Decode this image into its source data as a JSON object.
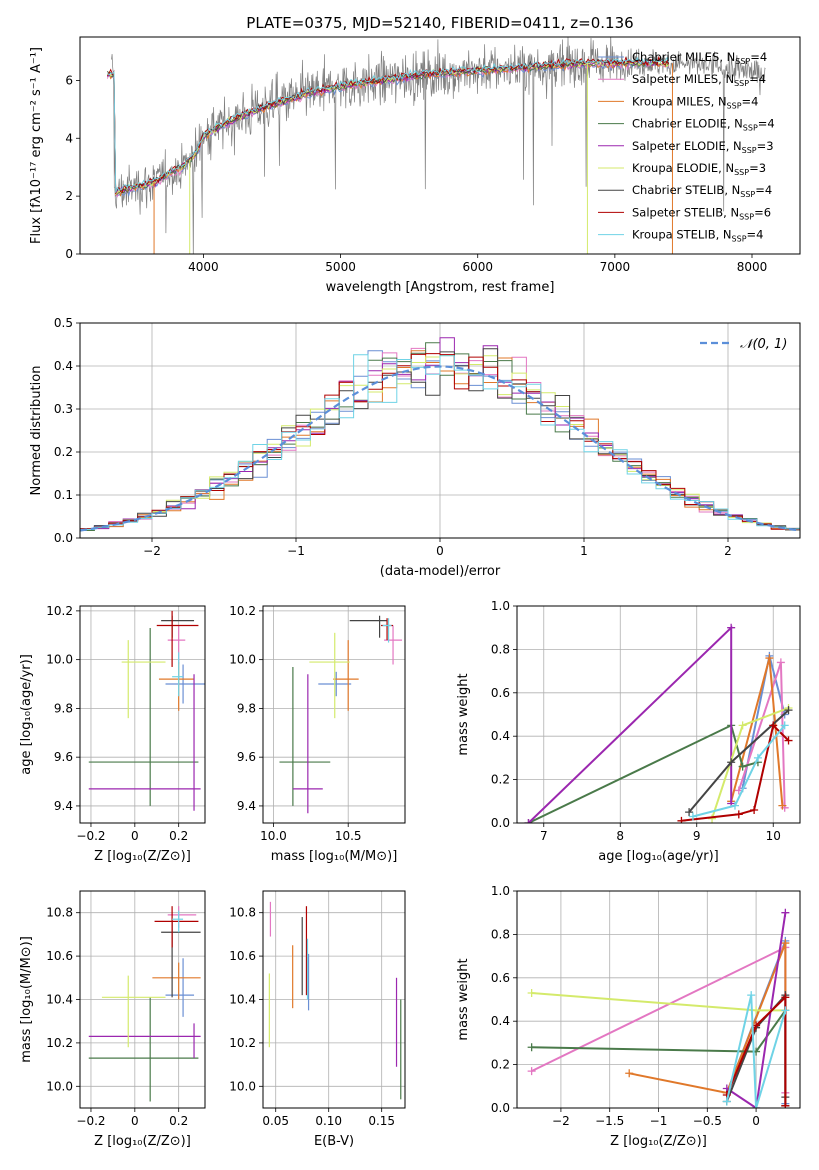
{
  "figure": {
    "title": "PLATE=0375, MJD=52140, FIBERID=0411, z=0.136"
  },
  "colors": {
    "chabrier_miles": "#6a8fd4",
    "salpeter_miles": "#e377c2",
    "kroupa_miles": "#e0782a",
    "chabrier_elodie": "#4a7a4a",
    "salpeter_elodie": "#9b27af",
    "kroupa_elodie": "#d4ea6b",
    "chabrier_stelib": "#444444",
    "salpeter_stelib": "#b00000",
    "kroupa_stelib": "#6fd3e6",
    "observed": "#7f7f7f",
    "normal": "#5b8fd9"
  },
  "chart_data": [
    {
      "id": "spectrum",
      "type": "line",
      "xlabel": "wavelength [Angstrom, rest frame]",
      "ylabel": "Flux [fλ10⁻¹⁷ erg cm⁻² s⁻¹ A⁻¹]",
      "xlim": [
        3100,
        8350
      ],
      "ylim": [
        0,
        7.5
      ],
      "xticks": [
        4000,
        5000,
        6000,
        7000,
        8000
      ],
      "yticks": [
        0,
        2,
        4,
        6
      ],
      "legend_position": "right",
      "legend": [
        {
          "label": "Chabrier MILES, N",
          "sub": "SSP",
          "suffix": "=4",
          "color": "chabrier_miles"
        },
        {
          "label": "Salpeter MILES, N",
          "sub": "SSP",
          "suffix": "=4",
          "color": "salpeter_miles"
        },
        {
          "label": "Kroupa MILES, N",
          "sub": "SSP",
          "suffix": "=4",
          "color": "kroupa_miles"
        },
        {
          "label": "Chabrier ELODIE, N",
          "sub": "SSP",
          "suffix": "=4",
          "color": "chabrier_elodie"
        },
        {
          "label": "Salpeter ELODIE, N",
          "sub": "SSP",
          "suffix": "=3",
          "color": "salpeter_elodie"
        },
        {
          "label": "Kroupa ELODIE, N",
          "sub": "SSP",
          "suffix": "=3",
          "color": "kroupa_elodie"
        },
        {
          "label": "Chabrier STELIB, N",
          "sub": "SSP",
          "suffix": "=4",
          "color": "chabrier_stelib"
        },
        {
          "label": "Salpeter STELIB, N",
          "sub": "SSP",
          "suffix": "=6",
          "color": "salpeter_stelib"
        },
        {
          "label": "Kroupa STELIB, N",
          "sub": "SSP",
          "suffix": "=4",
          "color": "kroupa_stelib"
        }
      ],
      "continuum": [
        [
          3350,
          2.1
        ],
        [
          3500,
          2.3
        ],
        [
          3650,
          2.5
        ],
        [
          3750,
          2.8
        ],
        [
          3850,
          3.0
        ],
        [
          3950,
          3.5
        ],
        [
          4000,
          4.1
        ],
        [
          4200,
          4.6
        ],
        [
          4400,
          5.0
        ],
        [
          4600,
          5.3
        ],
        [
          4800,
          5.6
        ],
        [
          5000,
          5.8
        ],
        [
          5300,
          6.0
        ],
        [
          5600,
          6.2
        ],
        [
          5900,
          6.3
        ],
        [
          6200,
          6.4
        ],
        [
          6500,
          6.5
        ],
        [
          6800,
          6.6
        ],
        [
          7100,
          6.6
        ],
        [
          7400,
          6.6
        ],
        [
          7700,
          6.5
        ],
        [
          8000,
          6.3
        ],
        [
          8100,
          6.2
        ]
      ],
      "model_range": [
        3300,
        7400
      ]
    },
    {
      "id": "residuals",
      "type": "bar",
      "xlabel": "(data-model)/error",
      "ylabel": "Normed distribution",
      "xlim": [
        -2.5,
        2.5
      ],
      "ylim": [
        0,
        0.5
      ],
      "xticks": [
        -2,
        -1,
        0,
        1,
        2
      ],
      "yticks": [
        0.0,
        0.1,
        0.2,
        0.3,
        0.4,
        0.5
      ],
      "bin_width": 0.1,
      "legend_label": "𝒩(0, 1)",
      "legend_position": "top-right",
      "series": [
        "chabrier_miles",
        "salpeter_miles",
        "kroupa_miles",
        "chabrier_elodie",
        "salpeter_elodie",
        "kroupa_elodie",
        "chabrier_stelib",
        "salpeter_stelib",
        "kroupa_stelib"
      ]
    },
    {
      "id": "z_age",
      "type": "scatter",
      "xlabel": "Z [log₁₀(Z/Z⊙)]",
      "ylabel": "age  [log₁₀(age/yr)]",
      "xlim": [
        -0.25,
        0.32
      ],
      "ylim": [
        9.33,
        10.22
      ],
      "xticks": [
        -0.2,
        0.0,
        0.2
      ],
      "yticks": [
        9.4,
        9.6,
        9.8,
        10.0,
        10.2
      ],
      "points": [
        {
          "s": "chabrier_miles",
          "x": 0.22,
          "xe": [
            -0.08,
            0.1
          ],
          "y": 9.9,
          "ye": [
            -0.08,
            0.08
          ]
        },
        {
          "s": "salpeter_miles",
          "x": 0.2,
          "xe": [
            -0.05,
            0.03
          ],
          "y": 10.08,
          "ye": [
            -0.1,
            0.06
          ]
        },
        {
          "s": "kroupa_miles",
          "x": 0.2,
          "xe": [
            -0.09,
            0.07
          ],
          "y": 9.92,
          "ye": [
            -0.13,
            0.07
          ]
        },
        {
          "s": "chabrier_elodie",
          "x": 0.07,
          "xe": [
            -0.28,
            0.22
          ],
          "y": 9.58,
          "ye": [
            -0.18,
            0.55
          ]
        },
        {
          "s": "salpeter_elodie",
          "x": 0.27,
          "xe": [
            -0.48,
            0.03
          ],
          "y": 9.47,
          "ye": [
            -0.09,
            0.47
          ]
        },
        {
          "s": "kroupa_elodie",
          "x": -0.03,
          "xe": [
            -0.03,
            0.17
          ],
          "y": 9.99,
          "ye": [
            -0.23,
            0.09
          ]
        },
        {
          "s": "chabrier_stelib",
          "x": 0.17,
          "xe": [
            -0.05,
            0.1
          ],
          "y": 10.16,
          "ye": [
            -0.07,
            0.02
          ]
        },
        {
          "s": "salpeter_stelib",
          "x": 0.17,
          "xe": [
            -0.07,
            0.12
          ],
          "y": 10.14,
          "ye": [
            -0.17,
            0.06
          ]
        },
        {
          "s": "kroupa_stelib",
          "x": 0.2,
          "xe": [
            -0.03,
            0.02
          ],
          "y": 9.93,
          "ye": [
            -0.08,
            0.1
          ]
        }
      ]
    },
    {
      "id": "mass_age",
      "type": "scatter",
      "xlabel": "mass [log₁₀(M/M⊙)]",
      "ylabel": "",
      "xlim": [
        9.93,
        10.88
      ],
      "ylim": [
        9.33,
        10.22
      ],
      "xticks": [
        10.0,
        10.5
      ],
      "xticklabels": [
        "10.0",
        "10.5"
      ],
      "yticks": [
        9.4,
        9.6,
        9.8,
        10.0,
        10.2
      ],
      "points": [
        {
          "s": "chabrier_miles",
          "x": 10.42,
          "xe": [
            -0.12,
            0.1
          ],
          "y": 9.9,
          "ye": [
            -0.05,
            0.05
          ]
        },
        {
          "s": "salpeter_miles",
          "x": 10.8,
          "xe": [
            -0.06,
            0.06
          ],
          "y": 10.08,
          "ye": [
            -0.1,
            0.06
          ]
        },
        {
          "s": "kroupa_miles",
          "x": 10.5,
          "xe": [
            -0.1,
            0.07
          ],
          "y": 9.92,
          "ye": [
            -0.13,
            0.16
          ]
        },
        {
          "s": "chabrier_elodie",
          "x": 10.13,
          "xe": [
            -0.09,
            0.25
          ],
          "y": 9.58,
          "ye": [
            -0.18,
            0.39
          ]
        },
        {
          "s": "salpeter_elodie",
          "x": 10.23,
          "xe": [
            -0.1,
            0.1
          ],
          "y": 9.47,
          "ye": [
            -0.1,
            0.47
          ]
        },
        {
          "s": "kroupa_elodie",
          "x": 10.41,
          "xe": [
            -0.17,
            0.1
          ],
          "y": 9.99,
          "ye": [
            -0.23,
            0.12
          ]
        },
        {
          "s": "chabrier_stelib",
          "x": 10.71,
          "xe": [
            -0.2,
            0.05
          ],
          "y": 10.16,
          "ye": [
            -0.07,
            0.02
          ]
        },
        {
          "s": "salpeter_stelib",
          "x": 10.76,
          "xe": [
            -0.04,
            0.04
          ],
          "y": 10.14,
          "ye": [
            -0.06,
            0.03
          ]
        },
        {
          "s": "kroupa_stelib",
          "x": 10.77,
          "xe": [
            -0.04,
            0.02
          ],
          "y": 10.14,
          "ye": [
            -0.07,
            0.03
          ]
        }
      ]
    },
    {
      "id": "age_weight",
      "type": "line",
      "xlabel": "age  [log₁₀(age/yr)]",
      "ylabel": "mass weight",
      "xlim": [
        6.65,
        10.35
      ],
      "ylim": [
        0,
        1.0
      ],
      "xticks": [
        7,
        8,
        9,
        10
      ],
      "yticks": [
        0.0,
        0.2,
        0.4,
        0.6,
        0.8,
        1.0
      ],
      "series": [
        {
          "s": "chabrier_miles",
          "x": [
            9.6,
            9.95,
            10.15
          ],
          "y": [
            0.16,
            0.77,
            0.5
          ]
        },
        {
          "s": "salpeter_miles",
          "x": [
            9.55,
            10.1,
            10.15
          ],
          "y": [
            0.15,
            0.74,
            0.07
          ]
        },
        {
          "s": "kroupa_miles",
          "x": [
            9.45,
            9.95,
            10.12
          ],
          "y": [
            0.1,
            0.76,
            0.08
          ]
        },
        {
          "s": "chabrier_elodie",
          "x": [
            6.8,
            9.45,
            9.6,
            9.8
          ],
          "y": [
            0.0,
            0.45,
            0.26,
            0.28
          ]
        },
        {
          "s": "salpeter_elodie",
          "x": [
            6.8,
            9.45,
            9.45
          ],
          "y": [
            0.0,
            0.9,
            0.09
          ]
        },
        {
          "s": "kroupa_elodie",
          "x": [
            9.2,
            9.6,
            10.2
          ],
          "y": [
            0.02,
            0.45,
            0.53
          ]
        },
        {
          "s": "chabrier_stelib",
          "x": [
            8.9,
            9.45,
            10.2
          ],
          "y": [
            0.05,
            0.28,
            0.52
          ]
        },
        {
          "s": "salpeter_stelib",
          "x": [
            8.8,
            9.55,
            9.75,
            10.0,
            10.2
          ],
          "y": [
            0.01,
            0.04,
            0.06,
            0.45,
            0.38
          ]
        },
        {
          "s": "kroupa_stelib",
          "x": [
            8.95,
            9.5,
            9.8,
            10.15
          ],
          "y": [
            0.03,
            0.08,
            0.3,
            0.45
          ]
        }
      ]
    },
    {
      "id": "z_mass",
      "type": "scatter",
      "xlabel": "Z [log₁₀(Z/Z⊙)]",
      "ylabel": "mass [log₁₀(M/M⊙)]",
      "xlim": [
        -0.25,
        0.32
      ],
      "ylim": [
        9.9,
        10.9
      ],
      "xticks": [
        -0.2,
        0.0,
        0.2
      ],
      "yticks": [
        10.0,
        10.2,
        10.4,
        10.6,
        10.8
      ],
      "points": [
        {
          "s": "chabrier_miles",
          "x": 0.22,
          "xe": [
            -0.08,
            0.05
          ],
          "y": 10.42,
          "ye": [
            -0.1,
            0.17
          ]
        },
        {
          "s": "salpeter_miles",
          "x": 0.2,
          "xe": [
            -0.05,
            0.08
          ],
          "y": 10.79,
          "ye": [
            -0.06,
            0.04
          ]
        },
        {
          "s": "kroupa_miles",
          "x": 0.2,
          "xe": [
            -0.12,
            0.1
          ],
          "y": 10.5,
          "ye": [
            -0.1,
            0.07
          ]
        },
        {
          "s": "chabrier_elodie",
          "x": 0.07,
          "xe": [
            -0.28,
            0.22
          ],
          "y": 10.13,
          "ye": [
            -0.2,
            0.28
          ]
        },
        {
          "s": "salpeter_elodie",
          "x": 0.27,
          "xe": [
            -0.48,
            0.03
          ],
          "y": 10.23,
          "ye": [
            -0.1,
            0.06
          ]
        },
        {
          "s": "kroupa_elodie",
          "x": -0.03,
          "xe": [
            -0.12,
            0.17
          ],
          "y": 10.41,
          "ye": [
            -0.23,
            0.1
          ]
        },
        {
          "s": "chabrier_stelib",
          "x": 0.17,
          "xe": [
            -0.05,
            0.13
          ],
          "y": 10.71,
          "ye": [
            -0.3,
            0.05
          ]
        },
        {
          "s": "salpeter_stelib",
          "x": 0.17,
          "xe": [
            -0.08,
            0.12
          ],
          "y": 10.76,
          "ye": [
            -0.12,
            0.07
          ]
        },
        {
          "s": "kroupa_stelib",
          "x": 0.2,
          "xe": [
            -0.03,
            0.02
          ],
          "y": 10.77,
          "ye": [
            -0.06,
            0.04
          ]
        }
      ]
    },
    {
      "id": "ebv_mass",
      "type": "scatter",
      "xlabel": "E(B-V)",
      "ylabel": "",
      "xlim": [
        0.038,
        0.172
      ],
      "ylim": [
        9.9,
        10.9
      ],
      "xticks": [
        0.05,
        0.1,
        0.15
      ],
      "xticklabels": [
        "0.05",
        "0.10",
        "0.15"
      ],
      "yticks": [
        10.0,
        10.2,
        10.4,
        10.6,
        10.8
      ],
      "points": [
        {
          "s": "chabrier_miles",
          "x": 0.081,
          "y": 10.49,
          "ye": [
            -0.14,
            0.12
          ]
        },
        {
          "s": "salpeter_miles",
          "x": 0.045,
          "y": 10.79,
          "ye": [
            -0.1,
            0.06
          ]
        },
        {
          "s": "kroupa_miles",
          "x": 0.066,
          "y": 10.5,
          "ye": [
            -0.14,
            0.15
          ]
        },
        {
          "s": "chabrier_elodie",
          "x": 0.168,
          "y": 10.2,
          "ye": [
            -0.26,
            0.2
          ]
        },
        {
          "s": "salpeter_elodie",
          "x": 0.164,
          "y": 10.28,
          "ye": [
            -0.19,
            0.22
          ]
        },
        {
          "s": "kroupa_elodie",
          "x": 0.044,
          "y": 10.35,
          "ye": [
            -0.17,
            0.17
          ]
        },
        {
          "s": "chabrier_stelib",
          "x": 0.075,
          "y": 10.57,
          "ye": [
            -0.15,
            0.21
          ]
        },
        {
          "s": "salpeter_stelib",
          "x": 0.079,
          "y": 10.6,
          "ye": [
            -0.18,
            0.23
          ]
        },
        {
          "s": "kroupa_stelib",
          "x": 0.08,
          "y": 10.52,
          "ye": [
            -0.12,
            0.16
          ]
        }
      ]
    },
    {
      "id": "z_weight",
      "type": "line",
      "xlabel": "Z [log₁₀(Z/Z⊙)]",
      "ylabel": "mass weight",
      "xlim": [
        -2.45,
        0.45
      ],
      "ylim": [
        0,
        1.0
      ],
      "xticks": [
        -2.0,
        -1.5,
        -1.0,
        -0.5,
        0.0
      ],
      "yticks": [
        0.0,
        0.2,
        0.4,
        0.6,
        0.8,
        1.0
      ],
      "series": [
        {
          "s": "chabrier_miles",
          "x": [
            -0.3,
            0.3,
            0.3
          ],
          "y": [
            0.07,
            0.77,
            0.02
          ]
        },
        {
          "s": "salpeter_miles",
          "x": [
            -2.3,
            0.3,
            0.3
          ],
          "y": [
            0.17,
            0.74,
            0.07
          ]
        },
        {
          "s": "kroupa_miles",
          "x": [
            -1.3,
            -0.3,
            0.3,
            0.3
          ],
          "y": [
            0.16,
            0.07,
            0.76,
            0.01
          ]
        },
        {
          "s": "chabrier_elodie",
          "x": [
            -2.3,
            0.0,
            0.3,
            0.3
          ],
          "y": [
            0.28,
            0.26,
            0.45,
            0.01
          ]
        },
        {
          "s": "salpeter_elodie",
          "x": [
            -0.3,
            0.0,
            0.3
          ],
          "y": [
            0.09,
            0.0,
            0.9
          ]
        },
        {
          "s": "kroupa_elodie",
          "x": [
            -2.3,
            0.0,
            0.3
          ],
          "y": [
            0.53,
            0.45,
            0.45
          ]
        },
        {
          "s": "chabrier_stelib",
          "x": [
            -0.3,
            0.0,
            0.3,
            0.3
          ],
          "y": [
            0.03,
            0.37,
            0.52,
            0.05
          ]
        },
        {
          "s": "salpeter_stelib",
          "x": [
            -0.3,
            0.0,
            0.3,
            0.3
          ],
          "y": [
            0.06,
            0.38,
            0.51,
            0.01
          ]
        },
        {
          "s": "kroupa_stelib",
          "x": [
            -0.3,
            -0.05,
            0.0,
            0.3
          ],
          "y": [
            0.03,
            0.52,
            0.0,
            0.45
          ]
        }
      ]
    }
  ]
}
